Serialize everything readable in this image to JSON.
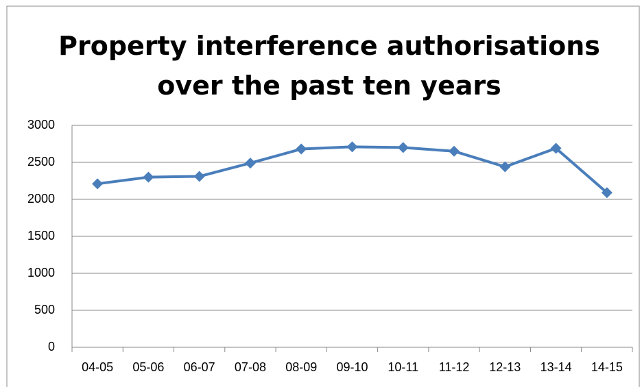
{
  "chart_data": {
    "type": "line",
    "title": "Property interference authorisations over the past ten years",
    "categories": [
      "04-05",
      "05-06",
      "06-07",
      "07-08",
      "08-09",
      "09-10",
      "10-11",
      "11-12",
      "12-13",
      "13-14",
      "14-15"
    ],
    "values": [
      2210,
      2300,
      2310,
      2490,
      2680,
      2710,
      2700,
      2650,
      2440,
      2690,
      2090
    ],
    "color": "#4a7ebb",
    "ylim": [
      0,
      3000
    ],
    "yticks": [
      0,
      500,
      1000,
      1500,
      2000,
      2500,
      3000
    ],
    "grid": true
  }
}
